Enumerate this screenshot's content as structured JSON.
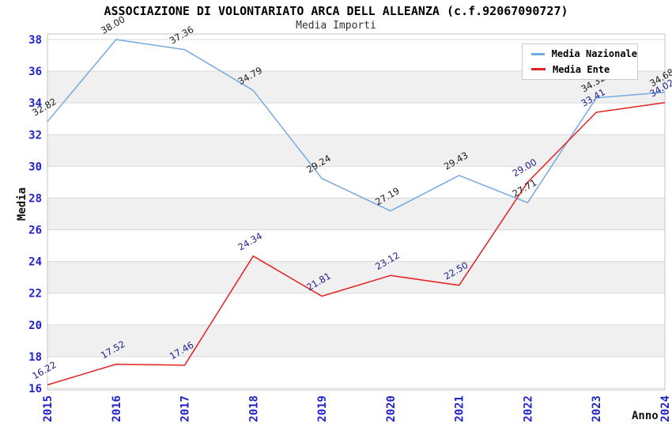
{
  "title": "ASSOCIAZIONE DI VOLONTARIATO ARCA DELL ALLEANZA (c.f.92067090727)",
  "subtitle": "Media Importi",
  "chart_data": {
    "type": "line",
    "x": [
      "2015",
      "2016",
      "2017",
      "2018",
      "2019",
      "2020",
      "2021",
      "2022",
      "2023",
      "2024"
    ],
    "xlabel": "Anno",
    "ylabel": "Media",
    "ylim": [
      16,
      38
    ],
    "ytick_step": 2,
    "yticks": [
      16,
      18,
      20,
      22,
      24,
      26,
      28,
      30,
      32,
      34,
      36,
      38
    ],
    "grid": true,
    "band_stripes": true,
    "legend_position": "top-right",
    "series": [
      {
        "name": "Media Nazionale",
        "color": "#74aae2",
        "label_color": "#1a1a1a",
        "values": [
          32.82,
          38.0,
          37.36,
          34.79,
          29.24,
          27.19,
          29.43,
          27.71,
          34.32,
          34.68
        ]
      },
      {
        "name": "Media Ente",
        "color": "#e52020",
        "label_color": "#1c1c8f",
        "values": [
          16.22,
          17.52,
          17.46,
          24.34,
          21.81,
          23.12,
          22.5,
          29.0,
          33.41,
          34.02
        ]
      }
    ]
  },
  "colors": {
    "background": "#ffffff",
    "band": "#f0f0f0",
    "grid": "#d9d9d9",
    "plot_border": "#c4c4c4",
    "tick_label": "#2222cc",
    "title": "#000000",
    "axis_title": "#111111"
  }
}
